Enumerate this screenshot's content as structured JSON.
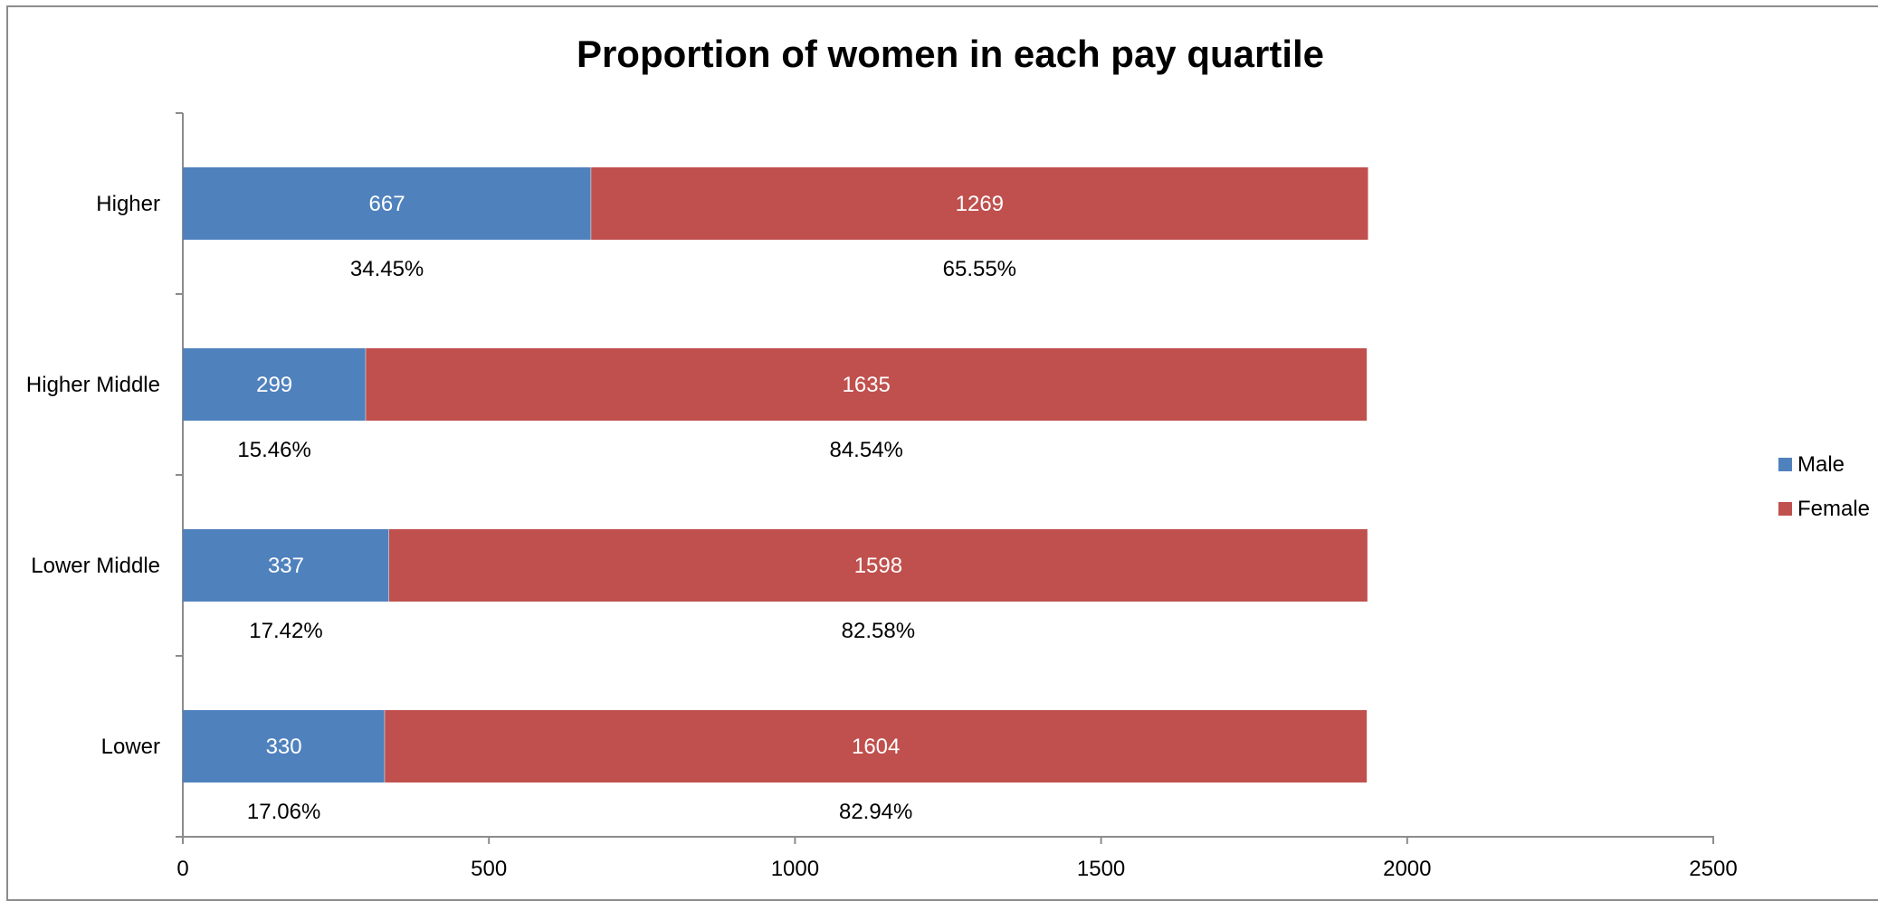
{
  "chart_data": {
    "type": "bar",
    "orientation": "horizontal",
    "stacked": true,
    "title": "Proportion of women in each pay quartile",
    "categories": [
      "Higher",
      "Higher Middle",
      "Lower Middle",
      "Lower"
    ],
    "series": [
      {
        "name": "Male",
        "color": "#4F81BD",
        "values": [
          667,
          299,
          337,
          330
        ],
        "percent_labels": [
          "34.45%",
          "15.46%",
          "17.42%",
          "17.06%"
        ]
      },
      {
        "name": "Female",
        "color": "#C0504D",
        "values": [
          1269,
          1635,
          1598,
          1604
        ],
        "percent_labels": [
          "65.55%",
          "84.54%",
          "82.58%",
          "82.94%"
        ]
      }
    ],
    "xlim": [
      0,
      2500
    ],
    "x_ticks": [
      0,
      500,
      1000,
      1500,
      2000,
      2500
    ],
    "grid": false,
    "legend_position": "right"
  }
}
